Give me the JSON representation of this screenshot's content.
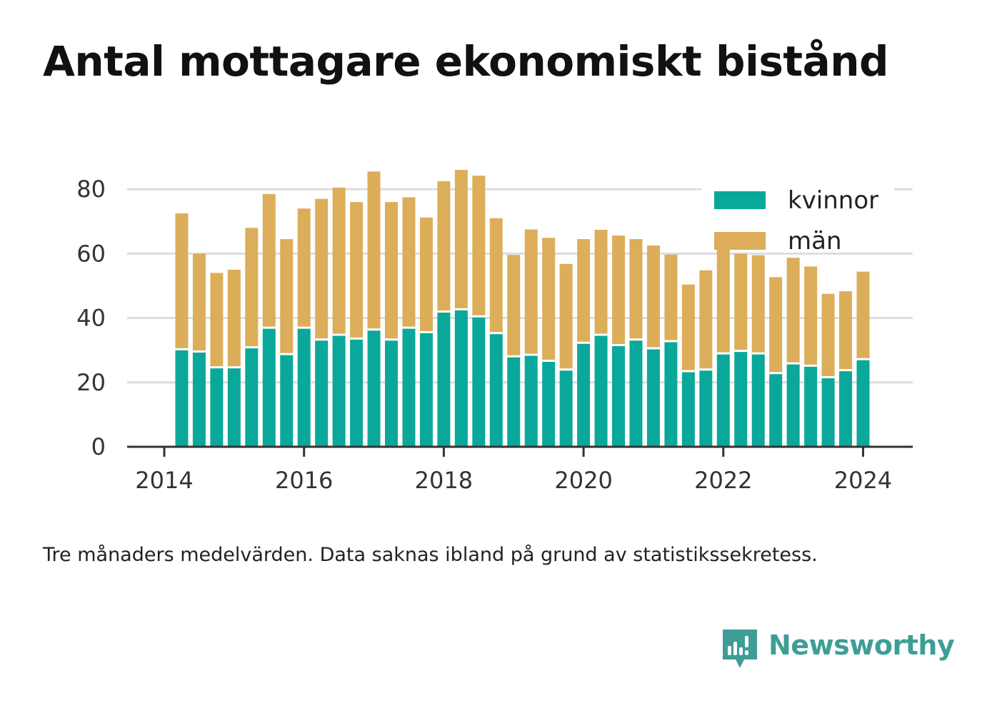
{
  "title": "Antal mottagare ekonomiskt bistånd",
  "note": "Tre månaders medelvärden. Data saknas ibland på grund av statistikssekretess.",
  "brand": {
    "name": "Newsworthy",
    "color": "#3e9e96",
    "icon": "newsworthy-logo-icon"
  },
  "colors": {
    "kvinnor": "#0aa89b",
    "man": "#dcae5a",
    "grid": "#dddddd",
    "axis": "#333333"
  },
  "chart_data": {
    "type": "bar",
    "stacked": true,
    "title": "Antal mottagare ekonomiskt bistånd",
    "xlabel": "",
    "ylabel": "",
    "ylim": [
      0,
      90
    ],
    "xlim": [
      2014,
      2024.7
    ],
    "yticks": [
      0,
      20,
      40,
      60,
      80
    ],
    "xticks": [
      2014,
      2016,
      2018,
      2020,
      2022,
      2024
    ],
    "grid": true,
    "legend": "top-right",
    "x": [
      2014.25,
      2014.5,
      2014.75,
      2015.0,
      2015.25,
      2015.5,
      2015.75,
      2016.0,
      2016.25,
      2016.5,
      2016.75,
      2017.0,
      2017.25,
      2017.5,
      2017.75,
      2018.0,
      2018.25,
      2018.5,
      2018.75,
      2019.0,
      2019.25,
      2019.5,
      2019.75,
      2020.0,
      2020.25,
      2020.5,
      2020.75,
      2021.0,
      2021.25,
      2021.5,
      2021.75,
      2022.0,
      2022.25,
      2022.5,
      2022.75,
      2023.0,
      2023.25,
      2023.5,
      2023.75,
      2024.0
    ],
    "series": [
      {
        "name": "kvinnor",
        "color": "#0aa89b",
        "values": [
          30.3,
          29.6,
          24.7,
          24.7,
          30.9,
          37.0,
          28.8,
          37.0,
          33.3,
          34.8,
          33.6,
          36.4,
          33.3,
          37.0,
          35.6,
          42.0,
          42.7,
          40.5,
          35.3,
          28.1,
          28.6,
          26.7,
          24.0,
          32.3,
          34.8,
          31.6,
          33.3,
          30.6,
          32.8,
          23.5,
          24.0,
          29.0,
          29.8,
          29.0,
          22.9,
          25.9,
          25.2,
          21.6,
          23.8,
          27.2
        ]
      },
      {
        "name": "män",
        "color": "#dcae5a",
        "values": [
          42.2,
          30.4,
          29.3,
          30.3,
          37.1,
          41.5,
          35.7,
          37.0,
          43.7,
          45.7,
          42.4,
          49.1,
          42.7,
          40.5,
          35.6,
          40.5,
          43.3,
          43.7,
          35.7,
          31.5,
          38.9,
          38.2,
          32.8,
          32.2,
          32.6,
          34.0,
          31.2,
          31.9,
          26.9,
          26.9,
          30.8,
          32.7,
          30.2,
          30.5,
          29.8,
          32.8,
          30.8,
          25.9,
          24.5,
          27.2
        ]
      }
    ]
  }
}
